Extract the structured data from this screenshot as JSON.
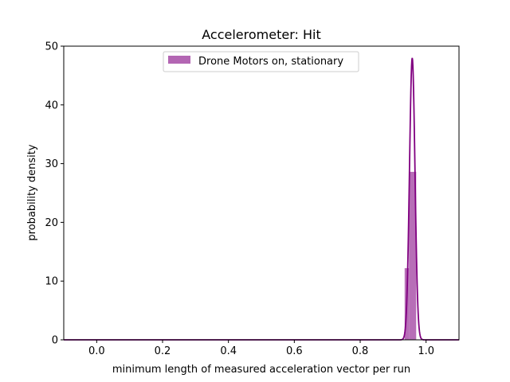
{
  "chart_data": {
    "type": "histogram",
    "title": "Accelerometer: Hit",
    "xlabel": "minimum length of measured acceleration vector per run",
    "ylabel": "probability density",
    "xlim": [
      -0.1,
      1.1
    ],
    "ylim": [
      0,
      50
    ],
    "xticks": [
      0.0,
      0.2,
      0.4,
      0.6,
      0.8,
      1.0
    ],
    "xtick_labels": [
      "0.0",
      "0.2",
      "0.4",
      "0.6",
      "0.8",
      "1.0"
    ],
    "yticks": [
      0,
      10,
      20,
      30,
      40,
      50
    ],
    "ytick_labels": [
      "0",
      "10",
      "20",
      "30",
      "40",
      "50"
    ],
    "grid": false,
    "legend_position": "top-center",
    "series": [
      {
        "name": "Drone Motors on, stationary",
        "kind": "histogram",
        "color": "#b366b3",
        "bins": [
          {
            "x0": 0.935,
            "x1": 0.948,
            "density": 12.2
          },
          {
            "x0": 0.948,
            "x1": 0.97,
            "density": 28.6
          }
        ]
      },
      {
        "name": "",
        "kind": "density-curve",
        "color": "#800080",
        "mean": 0.958,
        "std": 0.0083,
        "peak": 48
      }
    ]
  }
}
